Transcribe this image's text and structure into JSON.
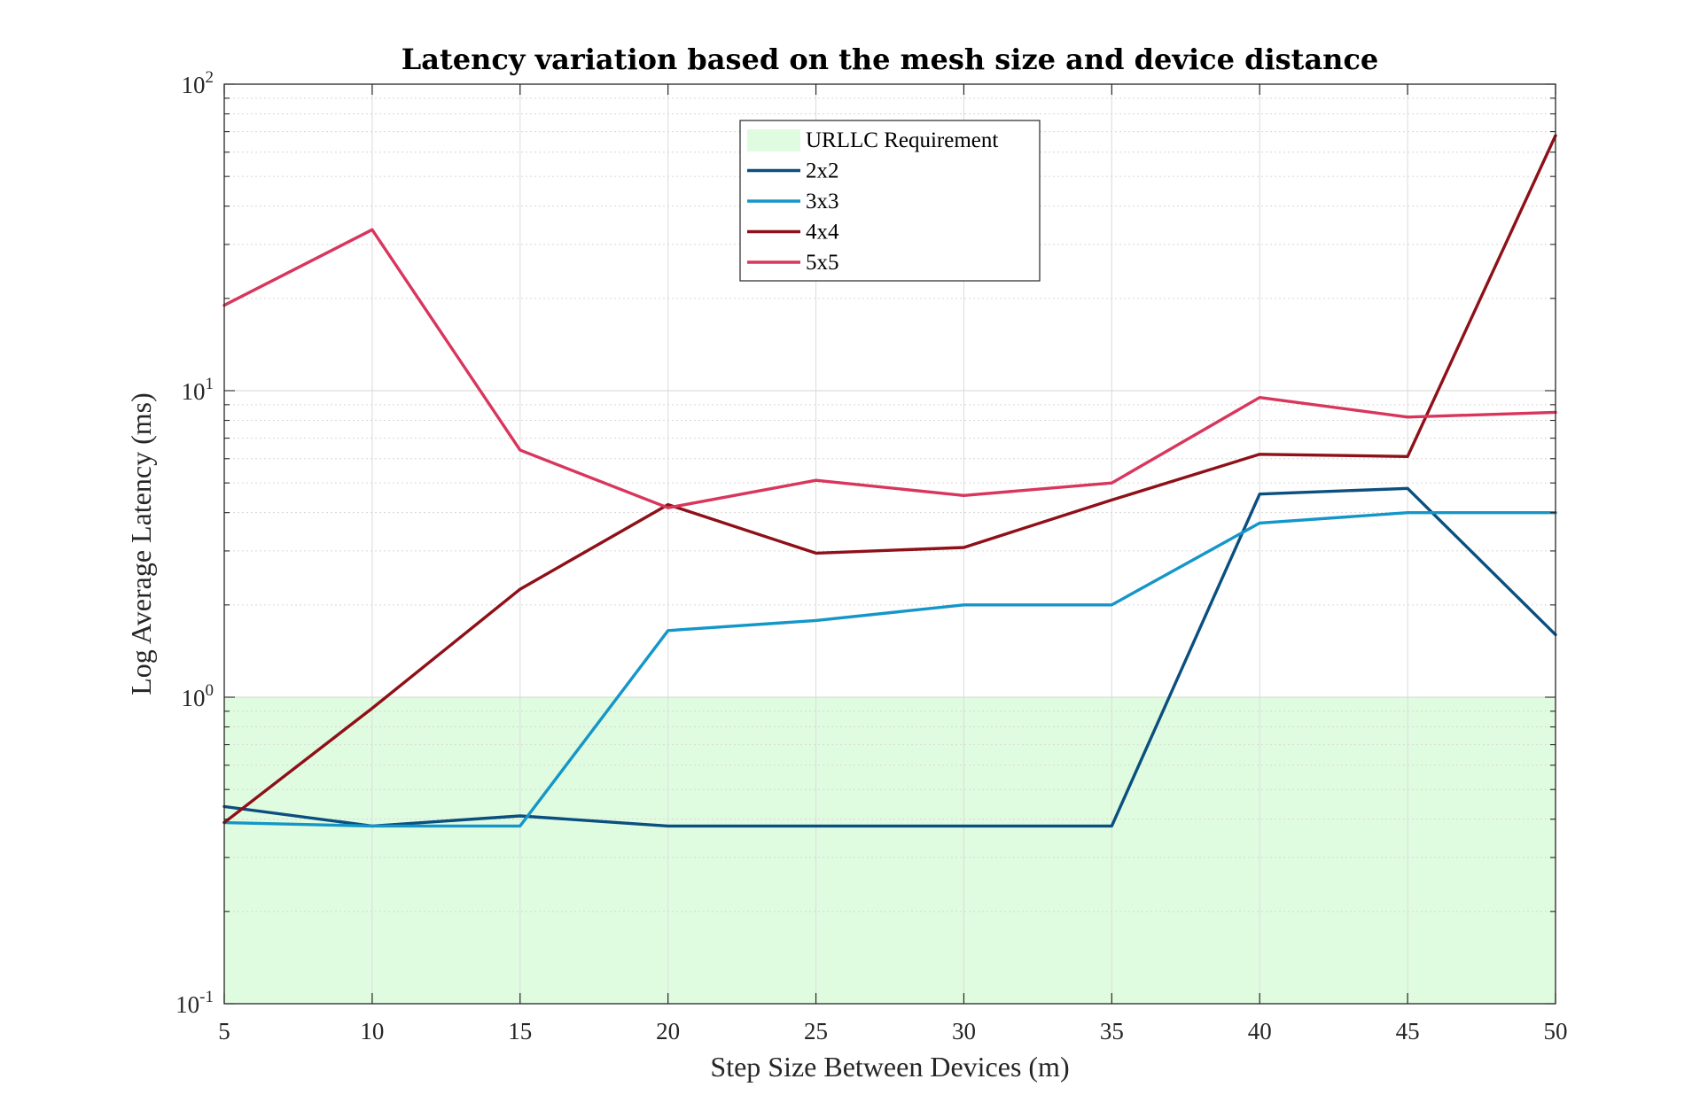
{
  "chart_data": {
    "type": "line",
    "title": "Latency variation based on the mesh size and device distance",
    "xlabel": "Step Size Between Devices (m)",
    "ylabel": "Log Average Latency (ms)",
    "x": [
      5,
      10,
      15,
      20,
      25,
      30,
      35,
      40,
      45,
      50
    ],
    "xlim": [
      5,
      50
    ],
    "ylim": [
      0.1,
      100
    ],
    "yscale": "log",
    "xticks": [
      "5",
      "10",
      "15",
      "20",
      "25",
      "30",
      "35",
      "40",
      "45",
      "50"
    ],
    "yticks": [
      {
        "value": 0.1,
        "base": "10",
        "exp": "-1"
      },
      {
        "value": 1,
        "base": "10",
        "exp": "0"
      },
      {
        "value": 10,
        "base": "10",
        "exp": "1"
      },
      {
        "value": 100,
        "base": "10",
        "exp": "2"
      }
    ],
    "grid": true,
    "legend_position": "top-center",
    "region": {
      "name": "URLLC Requirement",
      "y_range": [
        0.1,
        1
      ],
      "color": "#e0fce0"
    },
    "series": [
      {
        "name": "2x2",
        "color": "#0b4f7f",
        "values": [
          0.44,
          0.38,
          0.41,
          0.38,
          0.38,
          0.38,
          0.38,
          4.6,
          4.8,
          1.6
        ]
      },
      {
        "name": "3x3",
        "color": "#1496c8",
        "values": [
          0.39,
          0.38,
          0.38,
          1.65,
          1.78,
          2.0,
          2.0,
          3.7,
          4.0,
          4.0
        ]
      },
      {
        "name": "4x4",
        "color": "#8e1018",
        "values": [
          0.39,
          0.92,
          2.25,
          4.25,
          2.95,
          3.08,
          4.4,
          6.2,
          6.1,
          68
        ]
      },
      {
        "name": "5x5",
        "color": "#d8365c",
        "values": [
          19,
          33.5,
          6.4,
          4.15,
          5.1,
          4.55,
          5.0,
          9.5,
          8.2,
          8.5
        ]
      }
    ]
  }
}
